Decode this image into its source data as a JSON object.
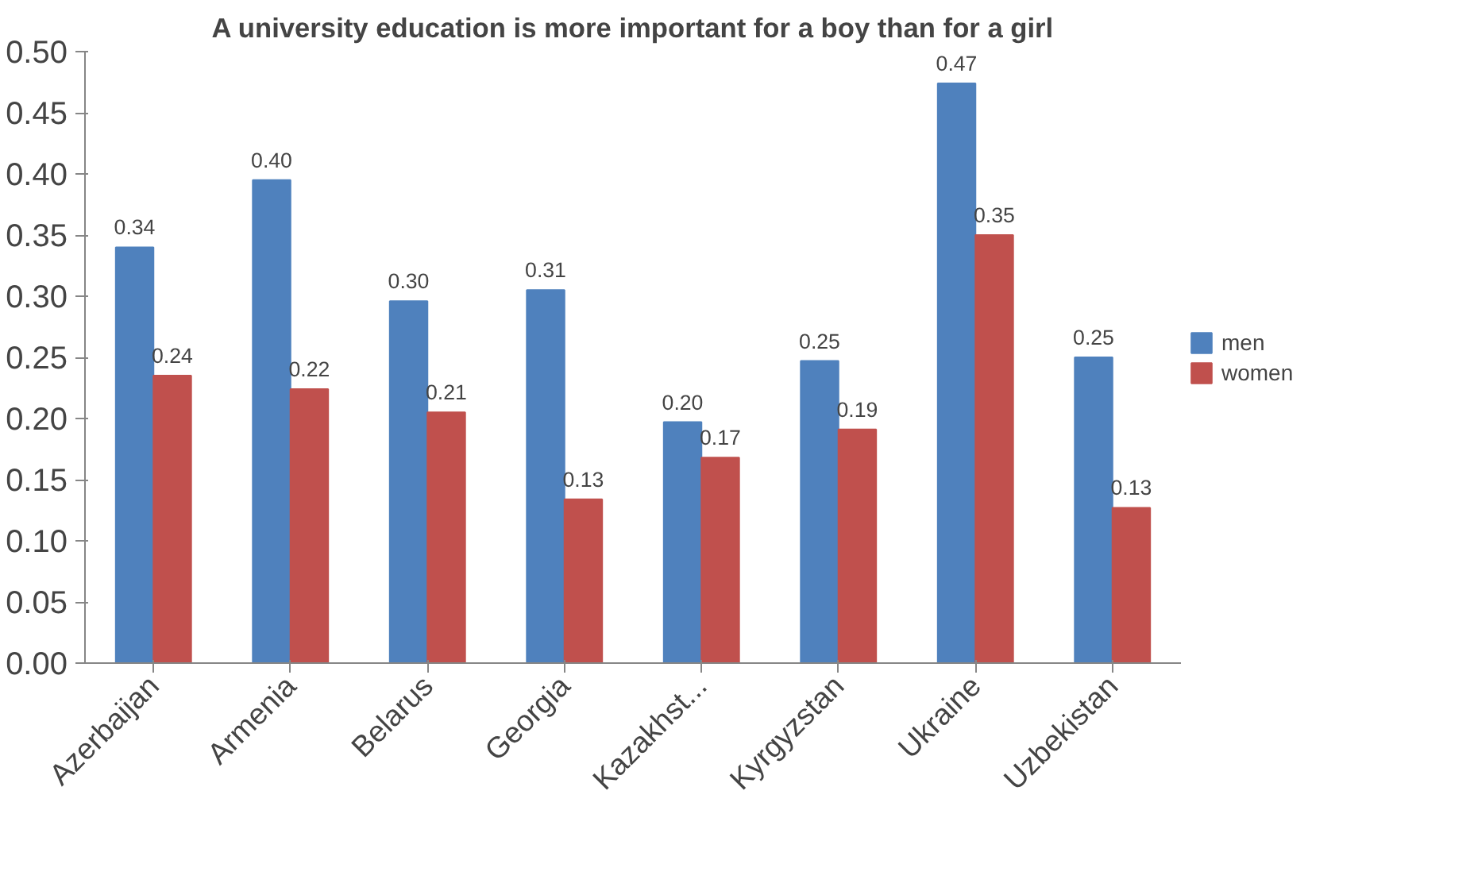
{
  "chart_data": {
    "type": "bar",
    "title": "A university education is more important for a boy than for a girl",
    "categories": [
      "Azerbaijan",
      "Armenia",
      "Belarus",
      "Georgia",
      "Kazakhst...",
      "Kyrgyzstan",
      "Ukraine",
      "Uzbekistan"
    ],
    "series": [
      {
        "name": "men",
        "color": "#4f81bd",
        "values": [
          0.34,
          0.395,
          0.296,
          0.305,
          0.197,
          0.247,
          0.474,
          0.25
        ],
        "value_labels": [
          "0.34",
          "0.40",
          "0.30",
          "0.31",
          "0.20",
          "0.25",
          "0.47",
          "0.25"
        ]
      },
      {
        "name": "women",
        "color": "#c0504d",
        "values": [
          0.235,
          0.224,
          0.205,
          0.134,
          0.168,
          0.191,
          0.35,
          0.127
        ],
        "value_labels": [
          "0.24",
          "0.22",
          "0.21",
          "0.13",
          "0.17",
          "0.19",
          "0.35",
          "0.13"
        ]
      }
    ],
    "ylim": [
      0,
      0.5
    ],
    "yticks": [
      {
        "value": 0,
        "label": "0.00"
      },
      {
        "value": 0.05,
        "label": "0.05"
      },
      {
        "value": 0.1,
        "label": "0.10"
      },
      {
        "value": 0.15,
        "label": "0.15"
      },
      {
        "value": 0.2,
        "label": "0.20"
      },
      {
        "value": 0.25,
        "label": "0.25"
      },
      {
        "value": 0.3,
        "label": "0.30"
      },
      {
        "value": 0.35,
        "label": "0.35"
      },
      {
        "value": 0.4,
        "label": "0.40"
      },
      {
        "value": 0.45,
        "label": "0.45"
      },
      {
        "value": 0.5,
        "label": "0.50"
      }
    ],
    "grid": false,
    "legend": "right"
  }
}
